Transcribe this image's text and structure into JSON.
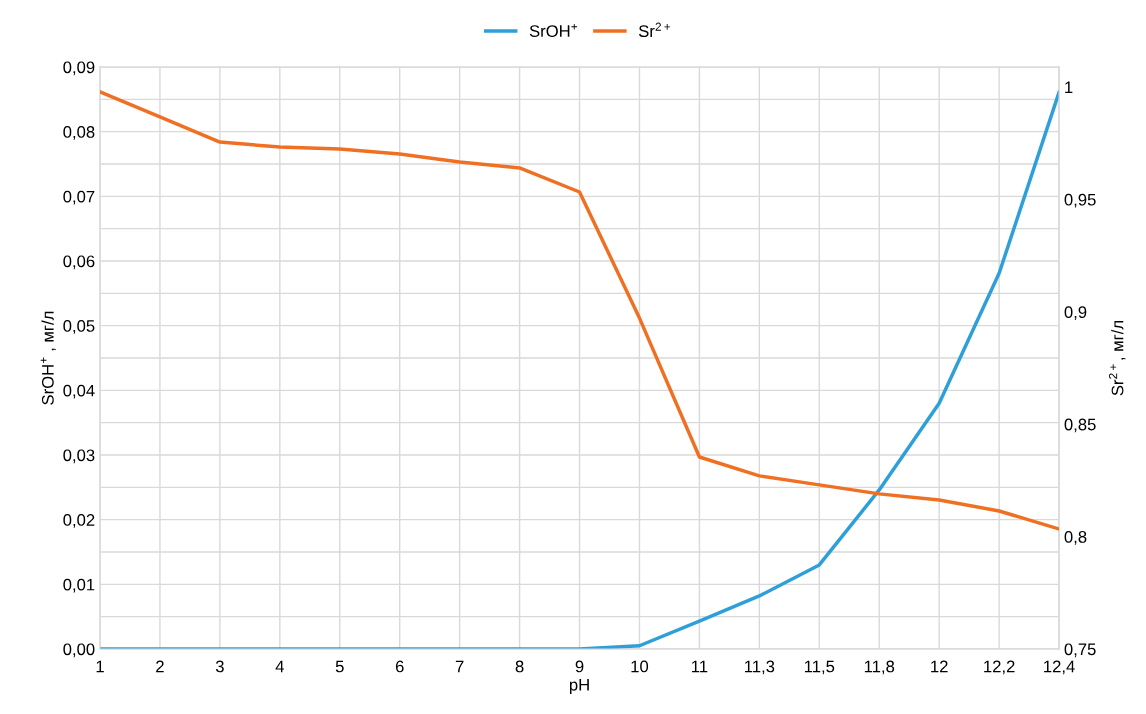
{
  "chart_data": {
    "type": "line",
    "xlabel": "pH",
    "ylabel": "SrOH$^{+}$ , мг/л",
    "y2label": "Sr$^{2+}$, мг/л",
    "categories": [
      "1",
      "2",
      "3",
      "4",
      "5",
      "6",
      "7",
      "8",
      "9",
      "10",
      "11",
      "11,3",
      "11,5",
      "11,8",
      "12",
      "12,2",
      "12,4"
    ],
    "series": [
      {
        "name": "SrOH$^{+}$",
        "color": "#2e9fd8",
        "values": [
          0,
          0,
          0,
          0,
          0,
          0,
          0,
          0,
          0,
          0.0005,
          0.0043,
          0.0082,
          0.013,
          0.0246,
          0.038,
          0.0581,
          0.0861
        ]
      },
      {
        "name": "Sr$^{2+}$",
        "color": "#f07023",
        "axis": "y2",
        "values": [
          0.9978,
          0.9867,
          0.9755,
          0.9733,
          0.9724,
          0.9702,
          0.9666,
          0.964,
          0.9533,
          0.8972,
          0.8354,
          0.827,
          0.823,
          0.819,
          0.8163,
          0.8114,
          0.8034
        ]
      }
    ],
    "ylim": [
      0,
      0.09
    ],
    "yticks": [
      {
        "value": 0,
        "label": "0,00"
      },
      {
        "value": 0.005,
        "label": null
      },
      {
        "value": 0.01,
        "label": "0,01"
      },
      {
        "value": 0.015,
        "label": null
      },
      {
        "value": 0.02,
        "label": "0,02"
      },
      {
        "value": 0.025,
        "label": null
      },
      {
        "value": 0.03,
        "label": "0,03"
      },
      {
        "value": 0.035,
        "label": null
      },
      {
        "value": 0.04,
        "label": "0,04"
      },
      {
        "value": 0.045,
        "label": null
      },
      {
        "value": 0.05,
        "label": "0,05"
      },
      {
        "value": 0.055,
        "label": null
      },
      {
        "value": 0.06,
        "label": "0,06"
      },
      {
        "value": 0.065,
        "label": null
      },
      {
        "value": 0.07,
        "label": "0,07"
      },
      {
        "value": 0.075,
        "label": null
      },
      {
        "value": 0.08,
        "label": "0,08"
      },
      {
        "value": 0.085,
        "label": null
      },
      {
        "value": 0.09,
        "label": "0,09"
      }
    ],
    "y2lim": [
      0.75,
      1.0089
    ],
    "y2ticks": [
      {
        "value": 0.75,
        "label": "0,75"
      },
      {
        "value": 0.8,
        "label": "0,8"
      },
      {
        "value": 0.85,
        "label": "0,85"
      },
      {
        "value": 0.9,
        "label": "0,9"
      },
      {
        "value": 0.95,
        "label": "0,95"
      },
      1
    ],
    "grid": true,
    "legend": "top",
    "marker": "none",
    "line_style": "solid"
  }
}
